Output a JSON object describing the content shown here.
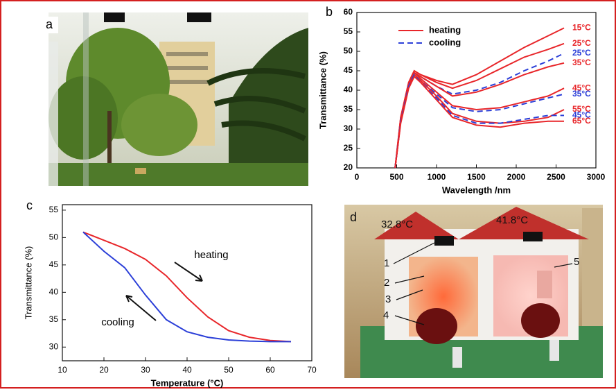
{
  "panels": {
    "a": {
      "label": "a"
    },
    "d": {
      "label": "d",
      "readings": [
        "32.8°C",
        "41.8°C"
      ],
      "callouts": [
        "1",
        "2",
        "3",
        "4",
        "5"
      ]
    }
  },
  "chart_data": [
    {
      "type": "line",
      "panel_label": "b",
      "xlabel": "Wavelength /nm",
      "ylabel": "Transmittance (%)",
      "xlim": [
        0,
        3000
      ],
      "xticks": [
        0,
        500,
        1000,
        1500,
        2000,
        2500,
        3000
      ],
      "ylim": [
        20,
        60
      ],
      "yticks": [
        20,
        25,
        30,
        35,
        40,
        45,
        50,
        55,
        60
      ],
      "legend": [
        {
          "label": "heating",
          "color": "#e8262a",
          "dashed": false
        },
        {
          "label": "cooling",
          "color": "#2b3fd8",
          "dashed": true
        }
      ],
      "x": [
        480,
        550,
        650,
        720,
        800,
        1000,
        1200,
        1500,
        1800,
        2100,
        2400,
        2600
      ],
      "series": [
        {
          "name": "15°C",
          "color": "#e8262a",
          "dashed": false,
          "values": [
            20,
            33,
            42,
            45,
            44,
            42.5,
            41.5,
            44,
            47.5,
            51,
            54,
            56
          ]
        },
        {
          "name": "25°C",
          "color": "#e8262a",
          "dashed": false,
          "values": [
            20,
            33,
            42,
            45,
            44,
            42,
            40.5,
            42.5,
            45.5,
            48.5,
            50.5,
            52
          ]
        },
        {
          "name": "25°C",
          "color": "#2b3fd8",
          "dashed": true,
          "values": [
            20,
            32,
            41.5,
            44.5,
            43.5,
            41,
            39,
            40,
            42,
            45,
            47.5,
            49.5
          ]
        },
        {
          "name": "35°C",
          "color": "#e8262a",
          "dashed": false,
          "values": [
            20,
            32,
            41.5,
            44.5,
            43.5,
            41,
            38.5,
            39.5,
            41.5,
            44,
            46,
            47
          ]
        },
        {
          "name": "45°C",
          "color": "#e8262a",
          "dashed": false,
          "values": [
            20,
            32,
            41.5,
            44.5,
            43,
            39.5,
            36,
            35,
            35.5,
            37,
            38.5,
            40.5
          ]
        },
        {
          "name": "35°C",
          "color": "#2b3fd8",
          "dashed": true,
          "values": [
            20,
            32,
            41,
            44,
            42.5,
            39,
            35.5,
            34.5,
            35,
            36.5,
            38,
            39
          ]
        },
        {
          "name": "55°C",
          "color": "#e8262a",
          "dashed": false,
          "values": [
            20,
            32,
            41,
            44,
            42.5,
            38.5,
            34,
            32,
            31.5,
            32,
            33,
            35
          ]
        },
        {
          "name": "45°C",
          "color": "#2b3fd8",
          "dashed": true,
          "values": [
            20,
            32,
            41,
            44,
            42,
            38,
            33.5,
            31.5,
            31.5,
            32.5,
            33.5,
            33.5
          ]
        },
        {
          "name": "65°C",
          "color": "#e8262a",
          "dashed": false,
          "values": [
            20,
            31.5,
            40.5,
            43.5,
            42,
            37.5,
            33,
            31,
            30.5,
            31.5,
            32,
            32
          ]
        }
      ]
    },
    {
      "type": "line",
      "panel_label": "c",
      "xlabel": "Temperature (°C)",
      "ylabel": "Transmittance (%)",
      "xlim": [
        10,
        70
      ],
      "xticks": [
        10,
        20,
        30,
        40,
        50,
        60,
        70
      ],
      "ylim": [
        27.5,
        56
      ],
      "yticks": [
        30,
        35,
        40,
        45,
        50,
        55
      ],
      "x": [
        15,
        20,
        25,
        30,
        35,
        40,
        45,
        50,
        55,
        60,
        65
      ],
      "series": [
        {
          "name": "heating",
          "color": "#e8262a",
          "values": [
            51,
            49.5,
            48,
            46,
            43,
            39,
            35.5,
            33,
            31.8,
            31.2,
            31
          ]
        },
        {
          "name": "cooling",
          "color": "#2b3fd8",
          "values": [
            51,
            47.5,
            44.5,
            39.5,
            35,
            32.8,
            31.8,
            31.3,
            31.1,
            31,
            31
          ]
        }
      ]
    }
  ]
}
